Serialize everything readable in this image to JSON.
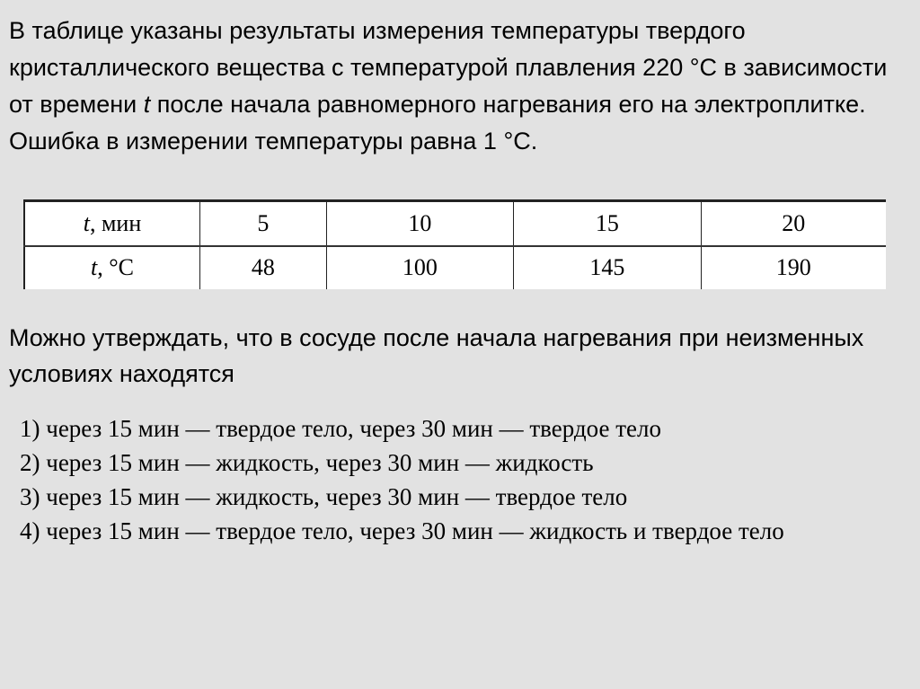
{
  "intro": {
    "part1": "В таблице указаны результаты измерения температуры твердого кристаллического вещества с температурой плавления 220 °С в зависимости от времени ",
    "var": "t",
    "part2": " после начала равномерного нагревания его на электроплитке. Ошибка в измерении температуры равна 1 °С."
  },
  "table": {
    "row1": {
      "var": "t",
      "label": ", мин",
      "values": [
        "5",
        "10",
        "15",
        "20"
      ]
    },
    "row2": {
      "var": "t",
      "label": ", °С",
      "values": [
        "48",
        "100",
        "145",
        "190"
      ]
    }
  },
  "question": "Можно утверждать, что в сосуде после начала нагревания при неизменных условиях находятся",
  "options": [
    "1) через 15 мин — твердое тело, через 30 мин — твердое тело",
    "2) через 15 мин — жидкость, через 30 мин — жидкость",
    "3) через 15 мин — жидкость, через 30 мин — твердое тело",
    "4) через 15 мин — твердое тело, через 30 мин — жидкость и твердое тело"
  ]
}
